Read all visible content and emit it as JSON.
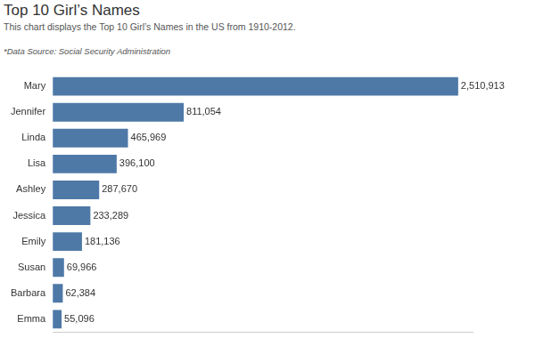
{
  "chart_data": {
    "type": "bar",
    "title": "Top 10 Girl’s Names",
    "subtitle": "This chart displays the Top 10 Girl’s Names in the US from 1910-2012.",
    "annotations": [
      "*Data Source: Social Security Administration"
    ],
    "orientation": "horizontal",
    "categories": [
      "Mary",
      "Jennifer",
      "Linda",
      "Lisa",
      "Ashley",
      "Jessica",
      "Emily",
      "Susan",
      "Barbara",
      "Emma"
    ],
    "values": [
      2510913,
      811054,
      465969,
      396100,
      287670,
      233289,
      181136,
      69966,
      62384,
      55096
    ],
    "value_labels": [
      "2,510,913",
      "811,054",
      "465,969",
      "396,100",
      "287,670",
      "233,289",
      "181,136",
      "69,966",
      "62,384",
      "55,096"
    ],
    "color": "#4e79a7",
    "xlim": [
      0,
      2600000
    ],
    "grid": false,
    "data_labels": true,
    "tick_labels": "y"
  }
}
